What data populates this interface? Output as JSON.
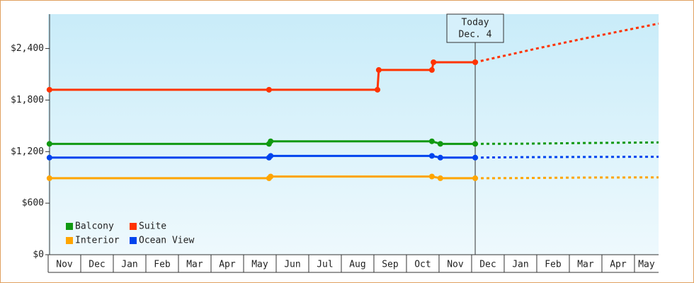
{
  "chart_data": {
    "type": "line",
    "categories": [
      "Nov",
      "Dec",
      "Jan",
      "Feb",
      "Mar",
      "Apr",
      "May",
      "Jun",
      "Jul",
      "Aug",
      "Sep",
      "Oct",
      "Nov",
      "Dec",
      "Jan",
      "Feb",
      "Mar",
      "Apr",
      "May"
    ],
    "xlim": [
      0,
      18.74
    ],
    "ylim": [
      0,
      2800
    ],
    "yticks": [
      {
        "value": 0,
        "label": "$0"
      },
      {
        "value": 600,
        "label": "$600"
      },
      {
        "value": 1200,
        "label": "$1,200"
      },
      {
        "value": 1800,
        "label": "$1,800"
      },
      {
        "value": 2400,
        "label": "$2,400"
      }
    ],
    "today": 13.11,
    "annotation": [
      "Today",
      "Dec. 4"
    ],
    "series": [
      {
        "name": "Balcony",
        "color": "#119911",
        "x": [
          0.04,
          6.78,
          6.83,
          11.78,
          12.04,
          13.11,
          14.5,
          16.5,
          18.74
        ],
        "values": [
          1290,
          1290,
          1320,
          1320,
          1290,
          1290,
          1292,
          1300,
          1307
        ]
      },
      {
        "name": "Suite",
        "color": "#ff3300",
        "x": [
          0.04,
          6.78,
          10.11,
          10.15,
          11.78,
          11.83,
          13.11,
          15.0,
          16.5,
          18.74
        ],
        "values": [
          1920,
          1920,
          1920,
          2150,
          2150,
          2240,
          2240,
          2400,
          2520,
          2690
        ]
      },
      {
        "name": "Interior",
        "color": "#ffa500",
        "x": [
          0.04,
          6.78,
          6.83,
          11.78,
          12.04,
          13.11,
          14.5,
          16.5,
          18.74
        ],
        "values": [
          890,
          890,
          910,
          910,
          890,
          890,
          892,
          898,
          900
        ]
      },
      {
        "name": "Ocean View",
        "color": "#0044ee",
        "x": [
          0.04,
          6.78,
          6.83,
          11.78,
          12.04,
          13.11,
          14.5,
          16.5,
          18.74
        ],
        "values": [
          1130,
          1130,
          1150,
          1150,
          1130,
          1130,
          1135,
          1138,
          1140
        ]
      }
    ]
  }
}
